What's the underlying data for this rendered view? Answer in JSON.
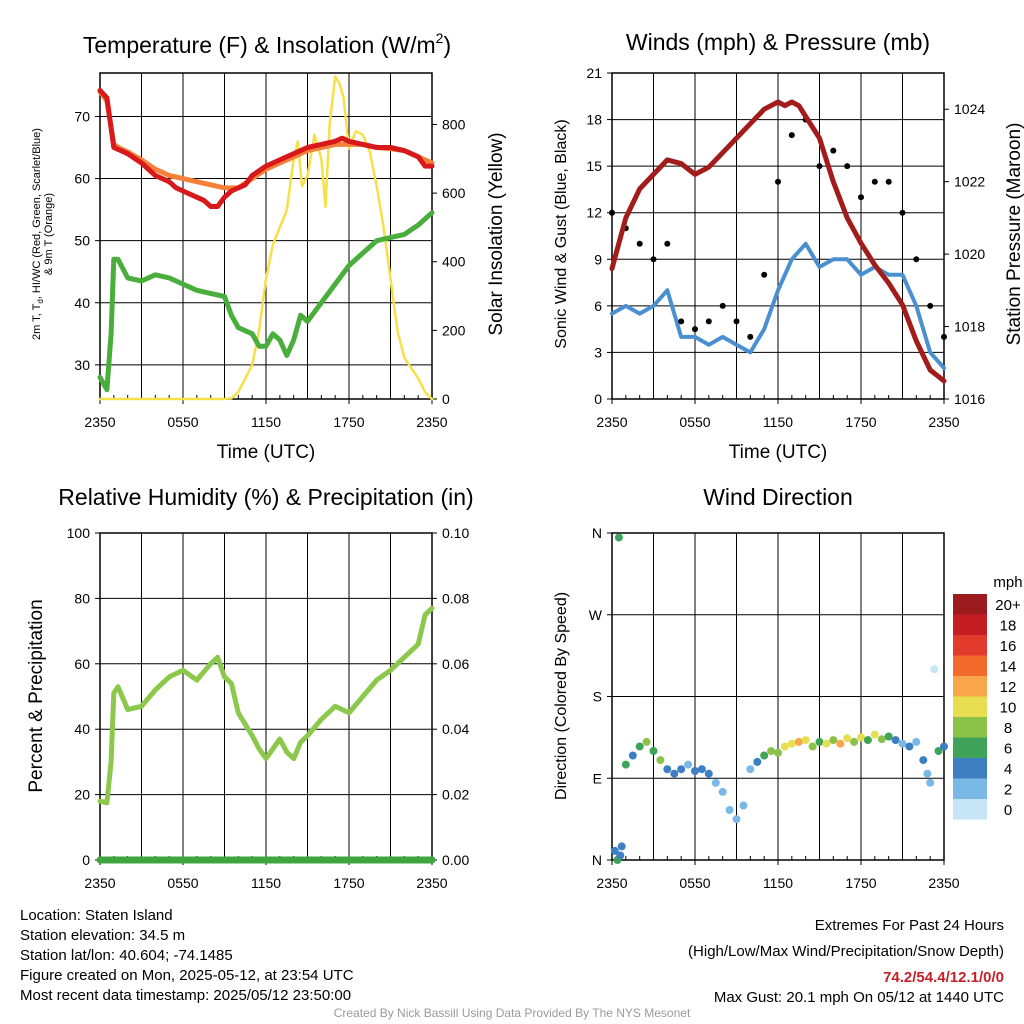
{
  "panels": {
    "temp": {
      "title_main": "Temperature (F) & Insolation (W/m",
      "title_sup": "2",
      "title_end": ")",
      "ylabel_left_1": "2m T, T",
      "ylabel_left_1_sub": "d",
      "ylabel_left_1_end": ", HI/WC (Red, Green, Scarlet/Blue)",
      "ylabel_left_2": "& 9m T (Orange)",
      "ylabel_right": "Solar Insolation (Yellow)",
      "xlabel": "Time (UTC)"
    },
    "wind": {
      "title": "Winds (mph) & Pressure (mb)",
      "ylabel_left": "Sonic Wind & Gust (Blue, Black)",
      "ylabel_right": "Station Pressure (Maroon)",
      "xlabel": "Time (UTC)"
    },
    "rh": {
      "title": "Relative Humidity (%) & Precipitation (in)",
      "ylabel_left": "Percent & Precipitation"
    },
    "dir": {
      "title": "Wind Direction",
      "ylabel_left": "Direction (Colored By Speed)",
      "legend_unit": "mph"
    }
  },
  "info_left": [
    "Location: Staten Island",
    "Station elevation: 34.5 m",
    "Station lat/lon: 40.604; -74.1485",
    "Figure created on Mon, 2025-05-12, at 23:54 UTC",
    "Most recent data timestamp: 2025/05/12 23:50:00"
  ],
  "info_right": {
    "line1": "Extremes For Past 24 Hours",
    "line2": "(High/Low/Max Wind/Precipitation/Snow Depth)",
    "extremes": "74.2/54.4/12.1/0/0",
    "gust": "Max Gust: 20.1 mph On 05/12 at 1440 UTC"
  },
  "credit": "Created By Nick Bassill Using Data Provided By The NYS Mesonet",
  "colors": {
    "temp_red": "#d7191c",
    "temp_orange": "#f4803a",
    "dewpoint_green": "#4aae3d",
    "insolation_yellow": "#f5e04a",
    "wind_blue": "#4a90d0",
    "gust_black": "#000000",
    "pressure_maroon": "#a31c1c",
    "rh_green": "#8cc84b",
    "precip_green": "#3fa63f"
  },
  "chart_data": [
    {
      "type": "line",
      "title": "Temperature (F) & Insolation (W/m2)",
      "xlabel": "Time (UTC)",
      "ylabel": "2m T, Td, HI/WC (Red, Green, Scarlet/Blue) & 9m T (Orange)",
      "y2label": "Solar Insolation (Yellow)",
      "xlim": [
        0,
        24
      ],
      "ylim": [
        24.5,
        77
      ],
      "y2lim": [
        0,
        950
      ],
      "xticks": [
        "2350",
        "0550",
        "1150",
        "1750",
        "2350"
      ],
      "yticks": [
        30,
        40,
        50,
        60,
        70
      ],
      "y2ticks": [
        0,
        200,
        400,
        600,
        800
      ],
      "grid": true,
      "series": [
        {
          "name": "2m T (Red)",
          "axis": "left",
          "color": "#d7191c",
          "x": [
            0,
            0.5,
            1,
            1.5,
            2,
            3,
            4,
            5,
            5.5,
            6,
            6.5,
            7,
            7.5,
            8,
            8.5,
            9,
            9.5,
            10,
            10.5,
            11,
            12,
            13,
            14,
            15,
            16,
            17,
            17.5,
            18,
            19,
            20,
            21,
            22,
            22.5,
            23,
            23.5,
            24
          ],
          "y": [
            74.2,
            73,
            65,
            64.5,
            64,
            62.5,
            60.5,
            59.5,
            58.5,
            58,
            57.5,
            57,
            56.5,
            55.5,
            55.5,
            57,
            58,
            58.5,
            59,
            60.5,
            62,
            63,
            64,
            65,
            65.5,
            66,
            66.5,
            66,
            65.5,
            65,
            65,
            64.5,
            64,
            63.5,
            62,
            62
          ]
        },
        {
          "name": "9m T (Orange)",
          "axis": "left",
          "color": "#f4803a",
          "x": [
            0,
            0.5,
            1,
            1.5,
            2,
            3,
            4,
            5,
            6,
            7,
            8,
            9,
            10,
            11,
            12,
            13,
            14,
            15,
            16,
            17,
            18,
            19,
            20,
            21,
            22,
            23,
            24
          ],
          "y": [
            74,
            72.5,
            65.5,
            64.8,
            64.3,
            63,
            61.5,
            60.5,
            60,
            59.5,
            59,
            58.5,
            58.5,
            60,
            61.5,
            62.5,
            63.5,
            64.5,
            65,
            65.5,
            65.5,
            65.5,
            65,
            64.8,
            64.5,
            63.5,
            62.5
          ]
        },
        {
          "name": "Dewpoint (Green)",
          "axis": "left",
          "color": "#4aae3d",
          "x": [
            0,
            0.5,
            0.8,
            1,
            1.3,
            2,
            3,
            4,
            5,
            6,
            7,
            8,
            9,
            9.5,
            10,
            10.5,
            11,
            11.5,
            12,
            12.5,
            13,
            13.5,
            14,
            14.5,
            15,
            16,
            17,
            18,
            19,
            20,
            21,
            22,
            23,
            24
          ],
          "y": [
            28,
            26,
            35,
            47,
            47,
            44,
            43.5,
            44.5,
            44,
            43,
            42,
            41.5,
            41,
            38,
            36,
            35.5,
            35,
            33,
            33,
            35,
            34,
            31.5,
            34,
            38,
            37,
            40,
            43,
            46,
            48,
            50,
            50.5,
            51,
            52.5,
            54.5
          ]
        },
        {
          "name": "Solar Insolation (Yellow)",
          "axis": "right",
          "color": "#f5e04a",
          "x": [
            0,
            2,
            4,
            6,
            8,
            9,
            9.5,
            10,
            10.5,
            11,
            11.5,
            12,
            12.5,
            13,
            13.5,
            14,
            14.3,
            14.6,
            15,
            15.5,
            16,
            16.3,
            16.6,
            17,
            17.3,
            17.6,
            18,
            18.5,
            19,
            19.5,
            20,
            20.5,
            21,
            21.5,
            22,
            22.5,
            23,
            23.5,
            24
          ],
          "y": [
            0,
            0,
            0,
            0,
            0,
            0,
            2,
            20,
            60,
            100,
            200,
            350,
            450,
            500,
            550,
            700,
            750,
            620,
            650,
            770,
            700,
            560,
            800,
            940,
            920,
            880,
            730,
            780,
            770,
            720,
            620,
            500,
            350,
            200,
            120,
            90,
            60,
            20,
            0
          ]
        }
      ]
    },
    {
      "type": "line",
      "title": "Winds (mph) & Pressure (mb)",
      "xlabel": "Time (UTC)",
      "ylabel": "Sonic Wind & Gust (Blue, Black)",
      "y2label": "Station Pressure (Maroon)",
      "xlim": [
        0,
        24
      ],
      "ylim": [
        0,
        21
      ],
      "y2lim": [
        1016,
        1025
      ],
      "xticks": [
        "2350",
        "0550",
        "1150",
        "1750",
        "2350"
      ],
      "yticks": [
        0,
        3,
        6,
        9,
        12,
        15,
        18,
        21
      ],
      "y2ticks": [
        1016,
        1018,
        1020,
        1022,
        1024
      ],
      "grid": true,
      "series": [
        {
          "name": "Sonic Wind (Blue)",
          "axis": "left",
          "color": "#4a90d0",
          "x": [
            0,
            1,
            2,
            3,
            4,
            5,
            6,
            7,
            8,
            9,
            10,
            11,
            12,
            13,
            14,
            15,
            16,
            17,
            18,
            19,
            20,
            21,
            22,
            23,
            24
          ],
          "y": [
            5.5,
            6,
            5.5,
            6,
            7,
            4,
            4,
            3.5,
            4,
            3.5,
            3,
            4.5,
            7,
            9,
            10,
            8.5,
            9,
            9,
            8,
            8.5,
            8,
            8,
            6,
            3,
            2
          ]
        },
        {
          "name": "Gust (Black)",
          "axis": "left",
          "color": "#000000",
          "x": [
            0,
            1,
            2,
            3,
            4,
            5,
            6,
            7,
            8,
            9,
            10,
            11,
            12,
            13,
            14,
            15,
            16,
            17,
            18,
            19,
            20,
            21,
            22,
            23,
            24
          ],
          "y": [
            12,
            11,
            10,
            9,
            10,
            5,
            4.5,
            5,
            6,
            5,
            4,
            8,
            14,
            17,
            18,
            15,
            16,
            15,
            13,
            14,
            14,
            12,
            9,
            6,
            4
          ]
        },
        {
          "name": "Station Pressure (Maroon)",
          "axis": "right",
          "color": "#a31c1c",
          "x": [
            0,
            0.5,
            1,
            2,
            3,
            4,
            5,
            6,
            7,
            8,
            9,
            10,
            11,
            12,
            12.5,
            13,
            13.5,
            14,
            15,
            16,
            17,
            18,
            19,
            20,
            21,
            22,
            23,
            24
          ],
          "y": [
            1019.6,
            1020.3,
            1021,
            1021.8,
            1022.2,
            1022.6,
            1022.5,
            1022.2,
            1022.4,
            1022.8,
            1023.2,
            1023.6,
            1024,
            1024.2,
            1024.1,
            1024.2,
            1024.1,
            1023.8,
            1023.2,
            1022,
            1021,
            1020.3,
            1019.7,
            1019.2,
            1018.6,
            1017.6,
            1016.8,
            1016.5
          ]
        }
      ]
    },
    {
      "type": "line",
      "title": "Relative Humidity (%) & Precipitation (in)",
      "ylabel": "Percent & Precipitation",
      "xlim": [
        0,
        24
      ],
      "ylim": [
        0,
        100
      ],
      "y2lim": [
        0,
        0.1
      ],
      "xticks": [
        "2350",
        "0550",
        "1150",
        "1750",
        "2350"
      ],
      "yticks": [
        0,
        20,
        40,
        60,
        80,
        100
      ],
      "y2ticks": [
        "0.00",
        "0.02",
        "0.04",
        "0.06",
        "0.08",
        "0.10"
      ],
      "grid": true,
      "series": [
        {
          "name": "Relative Humidity",
          "axis": "left",
          "color": "#8cc84b",
          "x": [
            0,
            0.5,
            0.8,
            1,
            1.3,
            2,
            3,
            4,
            5,
            6,
            7,
            8,
            8.5,
            9,
            9.5,
            10,
            11,
            11.5,
            12,
            12.5,
            13,
            13.5,
            14,
            14.5,
            15,
            16,
            17,
            18,
            19,
            20,
            21,
            22,
            23,
            23.5,
            24
          ],
          "y": [
            18,
            17.5,
            30,
            51,
            53,
            46,
            47,
            52,
            56,
            58,
            55,
            60,
            62,
            56,
            54,
            45,
            38,
            34,
            31,
            34,
            37,
            33,
            31,
            36,
            38,
            43,
            47,
            45,
            50,
            55,
            58,
            62,
            66,
            75,
            77
          ]
        },
        {
          "name": "Precipitation",
          "axis": "right",
          "color": "#3fa63f",
          "x": [
            0,
            24
          ],
          "y": [
            0,
            0
          ]
        }
      ]
    },
    {
      "type": "scatter",
      "title": "Wind Direction",
      "ylabel": "Direction (Colored By Speed)",
      "xlim": [
        0,
        24
      ],
      "ylim": [
        0,
        360
      ],
      "xticks": [
        "2350",
        "0550",
        "1150",
        "1750",
        "2350"
      ],
      "yticks": [
        "N",
        "E",
        "S",
        "W",
        "N"
      ],
      "grid": true,
      "legend": {
        "title": "mph",
        "placement": "right",
        "labels": [
          "20+",
          "18",
          "16",
          "14",
          "12",
          "10",
          "8",
          "6",
          "4",
          "2",
          "0"
        ],
        "colors": [
          "#9b1b1e",
          "#c41e24",
          "#e23a2c",
          "#f26a2c",
          "#f9a54a",
          "#e8de52",
          "#8bc34a",
          "#3fa35a",
          "#3d7fc0",
          "#7ab8e6",
          "#c6e6f8"
        ]
      },
      "points": [
        {
          "x": 0.2,
          "dir": 10,
          "mph": 4
        },
        {
          "x": 0.4,
          "dir": 0,
          "mph": 6
        },
        {
          "x": 0.5,
          "dir": 355,
          "mph": 6
        },
        {
          "x": 0.6,
          "dir": 5,
          "mph": 3
        },
        {
          "x": 0.7,
          "dir": 15,
          "mph": 4
        },
        {
          "x": 1,
          "dir": 105,
          "mph": 6
        },
        {
          "x": 1.5,
          "dir": 115,
          "mph": 4
        },
        {
          "x": 2,
          "dir": 125,
          "mph": 6
        },
        {
          "x": 2.5,
          "dir": 130,
          "mph": 8
        },
        {
          "x": 3,
          "dir": 120,
          "mph": 6
        },
        {
          "x": 3.5,
          "dir": 110,
          "mph": 8
        },
        {
          "x": 4,
          "dir": 100,
          "mph": 4
        },
        {
          "x": 4.5,
          "dir": 95,
          "mph": 3
        },
        {
          "x": 5,
          "dir": 100,
          "mph": 4
        },
        {
          "x": 5.5,
          "dir": 105,
          "mph": 2
        },
        {
          "x": 6,
          "dir": 98,
          "mph": 3
        },
        {
          "x": 6.5,
          "dir": 100,
          "mph": 4
        },
        {
          "x": 7,
          "dir": 95,
          "mph": 3
        },
        {
          "x": 7.5,
          "dir": 85,
          "mph": 2
        },
        {
          "x": 8,
          "dir": 75,
          "mph": 2
        },
        {
          "x": 8.5,
          "dir": 55,
          "mph": 1
        },
        {
          "x": 9,
          "dir": 45,
          "mph": 1
        },
        {
          "x": 9.5,
          "dir": 60,
          "mph": 1
        },
        {
          "x": 10,
          "dir": 100,
          "mph": 2
        },
        {
          "x": 10.5,
          "dir": 108,
          "mph": 3
        },
        {
          "x": 11,
          "dir": 115,
          "mph": 6
        },
        {
          "x": 11.5,
          "dir": 120,
          "mph": 8
        },
        {
          "x": 12,
          "dir": 118,
          "mph": 7
        },
        {
          "x": 12.5,
          "dir": 125,
          "mph": 10
        },
        {
          "x": 13,
          "dir": 128,
          "mph": 9
        },
        {
          "x": 13.5,
          "dir": 130,
          "mph": 12
        },
        {
          "x": 14,
          "dir": 132,
          "mph": 10
        },
        {
          "x": 14.5,
          "dir": 125,
          "mph": 8
        },
        {
          "x": 15,
          "dir": 130,
          "mph": 6
        },
        {
          "x": 15.5,
          "dir": 128,
          "mph": 10
        },
        {
          "x": 16,
          "dir": 132,
          "mph": 8
        },
        {
          "x": 16.5,
          "dir": 128,
          "mph": 12
        },
        {
          "x": 17,
          "dir": 134,
          "mph": 9
        },
        {
          "x": 17.5,
          "dir": 130,
          "mph": 8
        },
        {
          "x": 18,
          "dir": 135,
          "mph": 10
        },
        {
          "x": 18.5,
          "dir": 132,
          "mph": 6
        },
        {
          "x": 19,
          "dir": 138,
          "mph": 10
        },
        {
          "x": 19.5,
          "dir": 133,
          "mph": 8
        },
        {
          "x": 20,
          "dir": 136,
          "mph": 6
        },
        {
          "x": 20.5,
          "dir": 132,
          "mph": 4
        },
        {
          "x": 21,
          "dir": 128,
          "mph": 2
        },
        {
          "x": 21.5,
          "dir": 125,
          "mph": 3
        },
        {
          "x": 22,
          "dir": 130,
          "mph": 2
        },
        {
          "x": 22.5,
          "dir": 110,
          "mph": 4
        },
        {
          "x": 22.8,
          "dir": 95,
          "mph": 2
        },
        {
          "x": 23,
          "dir": 85,
          "mph": 2
        },
        {
          "x": 23.3,
          "dir": 210,
          "mph": 0
        },
        {
          "x": 23.6,
          "dir": 120,
          "mph": 6
        },
        {
          "x": 24,
          "dir": 125,
          "mph": 4
        }
      ]
    }
  ]
}
